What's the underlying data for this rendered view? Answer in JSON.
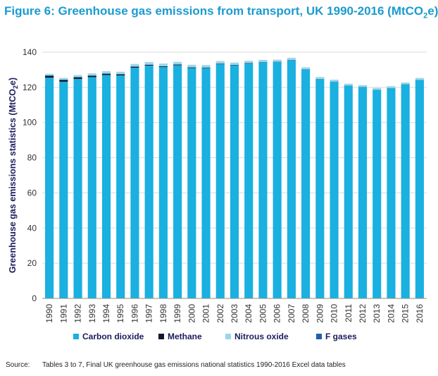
{
  "header": {
    "title_main": "Figure 6: Greenhouse gas emissions from transport, UK 1990-2016 (MtCO",
    "title_sub": "2",
    "title_end": "e)"
  },
  "footer": {
    "source_label": "Source:",
    "source_text": "Tables 3 to 7, Final UK greenhouse gas emissions national statistics 1990-2016 Excel data tables"
  },
  "chart_data": {
    "type": "bar",
    "stacked": true,
    "title": "Figure 6: Greenhouse gas emissions from transport, UK 1990-2016 (MtCO2e)",
    "ylabel": "Greenhouse gas emissions statistics (MtCO2e)",
    "xlabel": "",
    "ylim": [
      0,
      140
    ],
    "yticks": [
      0,
      20,
      40,
      60,
      80,
      100,
      120,
      140
    ],
    "grid": true,
    "legend": "bottom",
    "categories": [
      "1990",
      "1991",
      "1992",
      "1993",
      "1994",
      "1995",
      "1996",
      "1997",
      "1998",
      "1999",
      "2000",
      "2001",
      "2002",
      "2003",
      "2004",
      "2005",
      "2006",
      "2007",
      "2008",
      "2009",
      "2010",
      "2011",
      "2012",
      "2013",
      "2014",
      "2015",
      "2016"
    ],
    "series": [
      {
        "name": "Carbon dioxide",
        "color": "#1ab0e0",
        "values": [
          125.5,
          123.2,
          124.8,
          125.8,
          127.0,
          126.8,
          131.2,
          132.4,
          131.6,
          132.6,
          131.0,
          131.0,
          133.3,
          132.6,
          133.6,
          134.3,
          134.4,
          135.5,
          130.2,
          124.7,
          123.2,
          121.0,
          120.2,
          118.6,
          119.6,
          121.7,
          124.2
        ]
      },
      {
        "name": "Methane",
        "color": "#0e1a33",
        "values": [
          1.2,
          1.1,
          1.0,
          0.9,
          0.8,
          0.7,
          0.6,
          0.5,
          0.45,
          0.4,
          0.35,
          0.3,
          0.25,
          0.2,
          0.18,
          0.16,
          0.14,
          0.12,
          0.1,
          0.09,
          0.08,
          0.07,
          0.07,
          0.06,
          0.06,
          0.06,
          0.06
        ]
      },
      {
        "name": "Nitrous oxide",
        "color": "#9dd6ea",
        "values": [
          1.0,
          1.1,
          1.2,
          1.3,
          1.4,
          1.4,
          1.5,
          1.5,
          1.5,
          1.5,
          1.5,
          1.4,
          1.4,
          1.3,
          1.3,
          1.2,
          1.2,
          1.2,
          1.1,
          1.1,
          1.1,
          1.0,
          1.0,
          1.0,
          1.0,
          1.0,
          1.1
        ]
      },
      {
        "name": "F gases",
        "color": "#1f5fa8",
        "values": [
          0,
          0,
          0,
          0,
          0,
          0,
          0,
          0,
          0,
          0,
          0,
          0,
          0,
          0,
          0,
          0,
          0,
          0,
          0,
          0,
          0,
          0,
          0,
          0,
          0,
          0,
          0
        ]
      }
    ]
  }
}
